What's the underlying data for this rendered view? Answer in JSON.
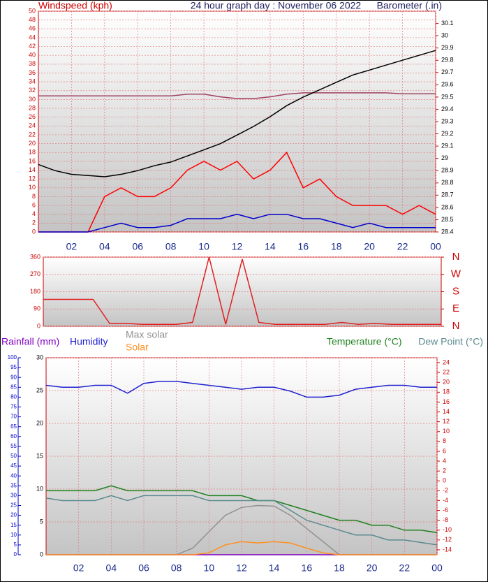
{
  "chart_data": [
    {
      "type": "line",
      "title": "24 hour graph day : November 06 2022",
      "y_label": "Windspeed (kph)",
      "y2_label": "Barometer (.in)",
      "x": [
        0,
        1,
        2,
        3,
        4,
        5,
        6,
        7,
        8,
        9,
        10,
        11,
        12,
        13,
        14,
        15,
        16,
        17,
        18,
        19,
        20,
        21,
        22,
        23,
        24
      ],
      "xlim": [
        0,
        24
      ],
      "xticks": [
        {
          "value": 2,
          "label": "02"
        },
        {
          "value": 4,
          "label": "04"
        },
        {
          "value": 6,
          "label": "06"
        },
        {
          "value": 8,
          "label": "08"
        },
        10,
        12,
        14,
        16,
        18,
        20,
        22,
        {
          "value": 24,
          "label": "00"
        }
      ],
      "ylim": [
        0,
        50
      ],
      "yticks": [
        0,
        2,
        4,
        6,
        8,
        10,
        12,
        14,
        16,
        18,
        20,
        22,
        24,
        26,
        28,
        30,
        32,
        34,
        36,
        38,
        40,
        42,
        44,
        46,
        48,
        50
      ],
      "y2lim": [
        28.4,
        30.2
      ],
      "y2ticks": [
        28.4,
        28.5,
        28.6,
        28.7,
        28.8,
        28.9,
        29,
        29.1,
        29.2,
        29.3,
        29.4,
        29.5,
        29.6,
        29.7,
        29.8,
        29.9,
        30,
        30.1
      ],
      "grid": true,
      "series": [
        {
          "color": "#ff0000",
          "values": [
            0,
            0,
            0,
            0,
            8,
            10,
            8,
            8,
            10,
            14,
            16,
            14,
            16,
            12,
            14,
            18,
            10,
            12,
            8,
            6,
            6,
            6,
            4,
            6,
            4
          ]
        },
        {
          "color": "#0000cc",
          "values": [
            0,
            0,
            0,
            0,
            1,
            2,
            1,
            1,
            1.5,
            3,
            3,
            3,
            4,
            3,
            4,
            4,
            3,
            3,
            2,
            1,
            2,
            1,
            1,
            1,
            1
          ]
        },
        {
          "color": "#a04060",
          "values": [
            30.8,
            30.8,
            30.8,
            30.8,
            30.8,
            30.8,
            30.8,
            30.8,
            30.8,
            31.2,
            31.2,
            30.6,
            30.2,
            30.2,
            30.6,
            31.2,
            31.5,
            31.5,
            31.5,
            31.5,
            31.5,
            31.5,
            31.3,
            31.3,
            31.3
          ]
        },
        {
          "color": "#000000",
          "axis": "y2",
          "values": [
            28.95,
            28.9,
            28.87,
            28.86,
            28.85,
            28.87,
            28.9,
            28.94,
            28.97,
            29.02,
            29.07,
            29.12,
            29.19,
            29.26,
            29.34,
            29.43,
            29.5,
            29.56,
            29.62,
            29.68,
            29.72,
            29.76,
            29.8,
            29.84,
            29.88
          ]
        }
      ]
    },
    {
      "type": "line",
      "x": [
        0,
        1,
        2,
        3,
        4,
        5,
        6,
        7,
        8,
        9,
        10,
        11,
        12,
        13,
        14,
        15,
        16,
        17,
        18,
        19,
        20,
        21,
        22,
        23,
        24
      ],
      "xlim": [
        0,
        24
      ],
      "ylim": [
        0,
        360
      ],
      "yticks": [
        0,
        90,
        180,
        270,
        360
      ],
      "y2lim": [
        0,
        360
      ],
      "y2ticks": [
        {
          "value": 360,
          "label": "N"
        },
        {
          "value": 270,
          "label": "W"
        },
        {
          "value": 180,
          "label": "S"
        },
        {
          "value": 90,
          "label": "E"
        },
        {
          "value": 0,
          "label": "N"
        }
      ],
      "grid": true,
      "series": [
        {
          "color": "#e02020",
          "values": [
            140,
            140,
            140,
            140,
            15,
            15,
            10,
            10,
            10,
            20,
            360,
            10,
            350,
            20,
            10,
            10,
            10,
            10,
            20,
            10,
            15,
            10,
            10,
            10,
            10
          ]
        }
      ]
    },
    {
      "type": "line",
      "x": [
        0,
        1,
        2,
        3,
        4,
        5,
        6,
        7,
        8,
        9,
        10,
        11,
        12,
        13,
        14,
        15,
        16,
        17,
        18,
        19,
        20,
        21,
        22,
        23,
        24
      ],
      "xlim": [
        0,
        24
      ],
      "xticks": [
        {
          "value": 2,
          "label": "02"
        },
        {
          "value": 4,
          "label": "04"
        },
        {
          "value": 6,
          "label": "06"
        },
        {
          "value": 8,
          "label": "08"
        },
        10,
        12,
        14,
        16,
        18,
        20,
        22,
        {
          "value": 24,
          "label": "00"
        }
      ],
      "ylim": [
        0,
        30
      ],
      "yticks": [
        0,
        5,
        10,
        15,
        20,
        25,
        30
      ],
      "y2lim": [
        -15,
        25
      ],
      "y2ticks": [
        -14,
        -12,
        -10,
        -8,
        -6,
        -4,
        -2,
        0,
        2,
        4,
        6,
        8,
        10,
        12,
        14,
        16,
        18,
        20,
        22,
        24
      ],
      "y3lim": [
        0,
        100
      ],
      "y3ticks": [
        0,
        5,
        10,
        15,
        20,
        25,
        30,
        35,
        40,
        45,
        50,
        55,
        60,
        65,
        70,
        75,
        80,
        85,
        90,
        95,
        100
      ],
      "grid": true,
      "series": [
        {
          "name": "Rainfall (mm)",
          "color": "#8000c0",
          "values": [
            0,
            0,
            0,
            0,
            0,
            0,
            0,
            0,
            0,
            0,
            0,
            0,
            0,
            0,
            0,
            0,
            0,
            0,
            0,
            0,
            0,
            0,
            0,
            0,
            0
          ]
        },
        {
          "name": "Humidity",
          "color": "#2020d0",
          "axis": "y3",
          "values": [
            86,
            85,
            85,
            86,
            86,
            82,
            87,
            88,
            88,
            87,
            86,
            85,
            84,
            85,
            85,
            83,
            80,
            80,
            81,
            84,
            85,
            86,
            86,
            85,
            85
          ]
        },
        {
          "name": "Max solar",
          "color": "#909090",
          "values": [
            0,
            0,
            0,
            0,
            0,
            0,
            0,
            0,
            0,
            1,
            3.5,
            6,
            7.2,
            7.5,
            7.4,
            6,
            4,
            2,
            0,
            0,
            0,
            0,
            0,
            0,
            0
          ]
        },
        {
          "name": "Solar",
          "color": "#ff9020",
          "values": [
            0,
            0,
            0,
            0,
            0,
            0,
            0,
            0,
            0,
            0,
            0.3,
            1.5,
            2,
            1.8,
            2,
            1.8,
            1,
            0.3,
            0,
            0,
            0,
            0,
            0,
            0,
            0
          ]
        },
        {
          "name": "Temperature (°C)",
          "color": "#208020",
          "axis": "y2",
          "values": [
            -2,
            -2,
            -2,
            -2,
            -1,
            -2,
            -2,
            -2,
            -2,
            -2,
            -3,
            -3,
            -3,
            -4,
            -4,
            -5,
            -6,
            -7,
            -8,
            -8,
            -9,
            -9,
            -10,
            -10,
            -10.5
          ]
        },
        {
          "name": "Dew Point (°C)",
          "color": "#5a8a90",
          "axis": "y2",
          "values": [
            -3.5,
            -4,
            -4,
            -4,
            -3,
            -4,
            -3,
            -3,
            -3,
            -3,
            -4,
            -4,
            -4,
            -4,
            -4,
            -6,
            -8,
            -9,
            -10,
            -11,
            -11,
            -12,
            -12,
            -12.5,
            -13
          ]
        }
      ]
    }
  ]
}
